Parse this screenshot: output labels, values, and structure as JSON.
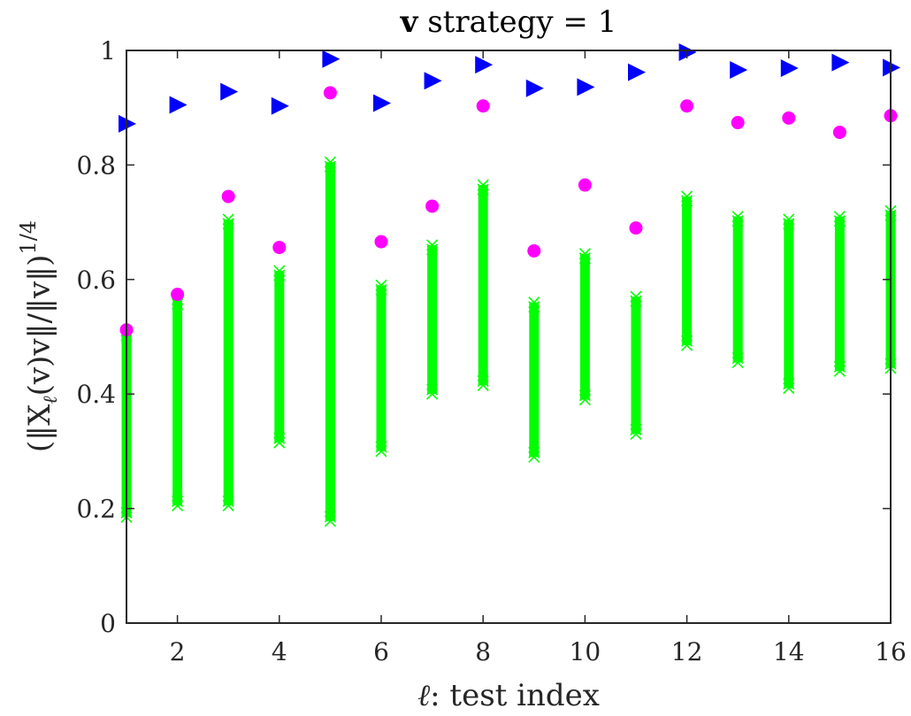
{
  "chart_data": {
    "type": "scatter",
    "title": {
      "bold_symbol": "v",
      "text": " strategy = 1"
    },
    "xlabel": {
      "symbol": "ℓ",
      "text": ": test index"
    },
    "ylabel": {
      "text": "(‖X",
      "sub": "ℓ",
      "text2": "(v)v‖/‖v‖)",
      "sup": "1/4"
    },
    "xlim": [
      1,
      16
    ],
    "ylim": [
      0,
      1
    ],
    "xticks": [
      2,
      4,
      6,
      8,
      10,
      12,
      14,
      16
    ],
    "yticks": [
      0,
      0.2,
      0.4,
      0.6,
      0.8,
      1
    ],
    "ytick_labels": [
      "0",
      "0.2",
      "0.4",
      "0.6",
      "0.8",
      "1"
    ],
    "grid": false,
    "colors": {
      "triangle": "#0000ff",
      "circle": "#ff00ff",
      "cross": "#00ff00",
      "axis": "#262626"
    },
    "series": [
      {
        "marker": "triangle-right",
        "color": "#0000ff",
        "x": [
          1,
          2,
          3,
          4,
          5,
          6,
          7,
          8,
          9,
          10,
          11,
          12,
          13,
          14,
          15,
          16
        ],
        "y": [
          0.872,
          0.905,
          0.928,
          0.903,
          0.985,
          0.908,
          0.947,
          0.975,
          0.934,
          0.936,
          0.962,
          0.997,
          0.966,
          0.969,
          0.979,
          0.97
        ]
      },
      {
        "marker": "circle",
        "color": "#ff00ff",
        "x": [
          1,
          2,
          3,
          4,
          5,
          6,
          7,
          8,
          9,
          10,
          11,
          12,
          13,
          14,
          15,
          16
        ],
        "y": [
          0.512,
          0.574,
          0.745,
          0.656,
          0.926,
          0.666,
          0.728,
          0.903,
          0.65,
          0.765,
          0.69,
          0.903,
          0.874,
          0.882,
          0.857,
          0.886
        ]
      },
      {
        "marker": "x-range",
        "color": "#00ff00",
        "x": [
          1,
          2,
          3,
          4,
          5,
          6,
          7,
          8,
          9,
          10,
          11,
          12,
          13,
          14,
          15,
          16
        ],
        "min": [
          0.185,
          0.205,
          0.205,
          0.315,
          0.178,
          0.3,
          0.4,
          0.415,
          0.29,
          0.39,
          0.33,
          0.485,
          0.455,
          0.41,
          0.44,
          0.445
        ],
        "max": [
          0.51,
          0.565,
          0.705,
          0.615,
          0.805,
          0.59,
          0.66,
          0.765,
          0.56,
          0.645,
          0.57,
          0.745,
          0.71,
          0.705,
          0.71,
          0.72
        ]
      }
    ]
  }
}
